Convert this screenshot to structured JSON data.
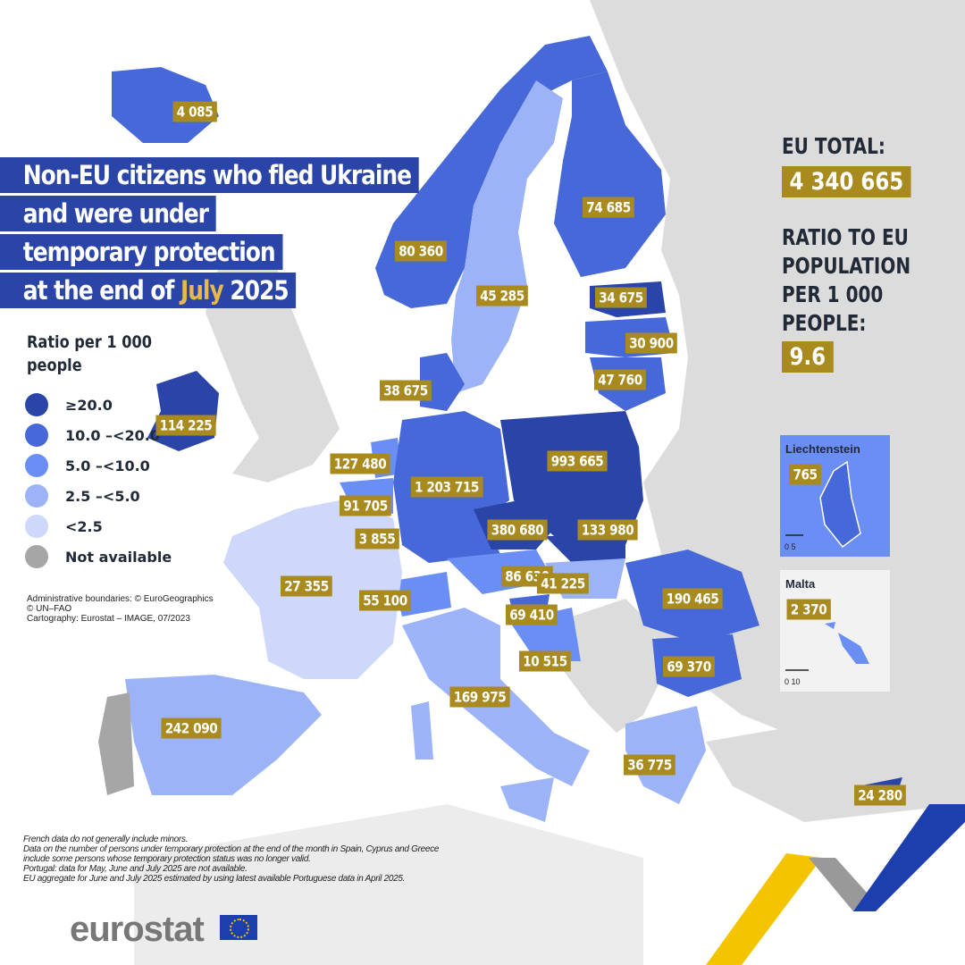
{
  "title": {
    "line1": "Non-EU citizens who fled Ukraine",
    "line2": "and were under",
    "line3": "temporary protection",
    "line4_prefix": "at the end of",
    "line4_month": "July",
    "line4_year": "2025"
  },
  "legend": {
    "title": "Ratio per 1 000 people",
    "classes": [
      {
        "label": "≥20.0",
        "color": "#2a44a8"
      },
      {
        "label": "10.0 –<20.0",
        "color": "#4668d8"
      },
      {
        "label": "5.0 –<10.0",
        "color": "#6b8ef5"
      },
      {
        "label": "2.5 –<5.0",
        "color": "#9db3f7"
      },
      {
        "label": "<2.5",
        "color": "#cdd8fb"
      },
      {
        "label": "Not available",
        "color": "#a6a6a6"
      }
    ]
  },
  "credits": [
    "Administrative boundaries: © EuroGeographics",
    "© UN–FAO",
    "Cartography: Eurostat – IMAGE, 07/2023"
  ],
  "footnotes": [
    "French data do not generally include minors.",
    "Data on the number of persons under temporary protection at the end of the month in Spain, Cyprus and Greece",
    "include some persons whose temporary protection status was no longer valid.",
    "Portugal: data for May, June and July 2025 are not available.",
    "EU aggregate for June and July 2025 estimated by using latest available Portuguese data in April 2025."
  ],
  "summary": {
    "eu_total_label": "EU TOTAL:",
    "eu_total": "4 340 665",
    "ratio_label": [
      "RATIO TO EU",
      "POPULATION",
      "PER 1 000",
      "PEOPLE:"
    ],
    "ratio": "9.6"
  },
  "insets": {
    "liechtenstein": {
      "name": "Liechtenstein",
      "value": "765",
      "scale": "0   5"
    },
    "malta": {
      "name": "Malta",
      "value": "2 370",
      "scale": "0   10"
    }
  },
  "values": [
    "4 085",
    "80 360",
    "45 285",
    "74 685",
    "34 675",
    "30 900",
    "47 760",
    "38 675",
    "114 225",
    "127 480",
    "91 705",
    "3 855",
    "1 203 715",
    "993 665",
    "380 680",
    "133 980",
    "86 630",
    "41 225",
    "69 410",
    "10 515",
    "27 355",
    "55 100",
    "190 465",
    "69 370",
    "242 090",
    "169 975",
    "36 775",
    "24 280"
  ],
  "logo": {
    "text": "eurostat"
  },
  "colors": {
    "label_bg": "#a88a1f",
    "not_eu": "#dcdcdc",
    "title_bg": "#2a44a8"
  }
}
